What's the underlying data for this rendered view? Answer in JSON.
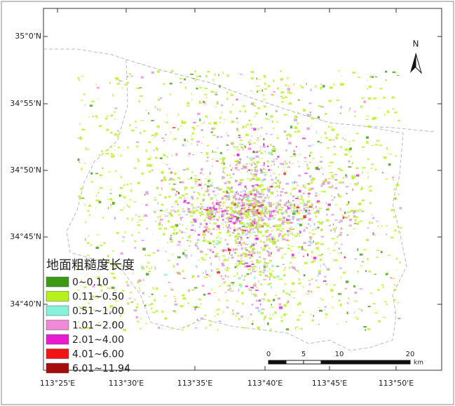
{
  "map": {
    "lat_labels": [
      "35°0'N",
      "34°55'N",
      "34°50'N",
      "34°45'N",
      "34°40'N"
    ],
    "lon_labels": [
      "113°25'E",
      "113°30'E",
      "113°35'E",
      "113°40'E",
      "113°45'E",
      "113°50'E"
    ],
    "north": "N",
    "legend": {
      "title": "地面粗糙度长度",
      "items": [
        {
          "label": "0~0.10",
          "color": "#3c9a12"
        },
        {
          "label": "0.11~0.50",
          "color": "#b6f21a"
        },
        {
          "label": "0.51~1.00",
          "color": "#86f2dc"
        },
        {
          "label": "1.01~2.00",
          "color": "#f08ad6"
        },
        {
          "label": "2.01~4.00",
          "color": "#e81ad2"
        },
        {
          "label": "4.01~6.00",
          "color": "#f21414"
        },
        {
          "label": "6.01~11.94",
          "color": "#a50c0c"
        }
      ]
    },
    "scale_bar": {
      "ticks": [
        "0",
        "5",
        "10",
        "20"
      ],
      "unit": "km"
    }
  }
}
